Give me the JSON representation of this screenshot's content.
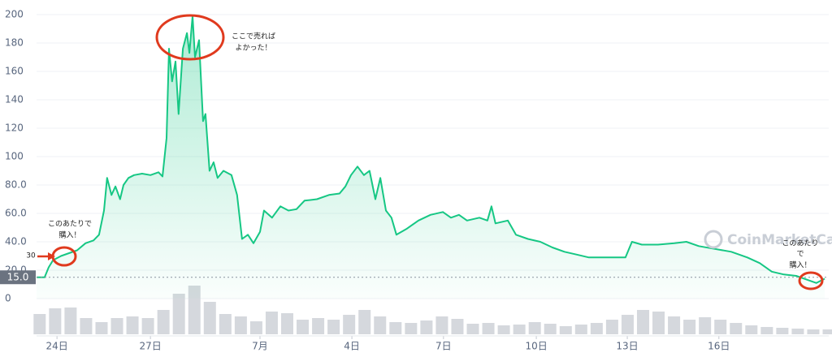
{
  "chart_data": {
    "type": "line",
    "x": [
      23.4,
      23.66,
      23.79,
      23.93,
      24.19,
      24.45,
      24.71,
      24.98,
      25.24,
      25.42,
      25.58,
      25.68,
      25.82,
      25.95,
      26.1,
      26.21,
      26.37,
      26.55,
      26.81,
      27.08,
      27.34,
      27.47,
      27.6,
      27.68,
      27.78,
      27.89,
      27.99,
      28.13,
      28.26,
      28.34,
      28.44,
      28.52,
      28.65,
      28.78,
      28.86,
      28.99,
      29.12,
      29.25,
      29.44,
      29.7,
      29.88,
      30.04,
      30.23,
      30.41,
      30.62,
      30.75,
      31.01,
      31.28,
      31.54,
      31.8,
      32.06,
      32.46,
      32.85,
      33.19,
      33.38,
      33.56,
      33.77,
      33.98,
      34.16,
      34.35,
      34.51,
      34.69,
      34.87,
      35.03,
      35.35,
      35.74,
      36.13,
      36.53,
      36.79,
      37.05,
      37.31,
      37.71,
      37.97,
      38.1,
      38.23,
      38.63,
      38.89,
      39.28,
      39.68,
      40.07,
      40.46,
      40.86,
      41.25,
      41.65,
      42.04,
      42.43,
      42.64,
      42.96,
      43.48,
      44.01,
      44.4,
      44.8,
      45.32,
      45.85,
      46.37,
      46.77,
      47.16,
      47.55,
      47.95,
      48.34,
      48.6,
      48.87
    ],
    "series": [
      {
        "color": "#16c784",
        "values": [
          15,
          15,
          22,
          27,
          30,
          32,
          34,
          39,
          41,
          45,
          62,
          85,
          73,
          79,
          70,
          80,
          85,
          87,
          88,
          87,
          89,
          86,
          113,
          176,
          153,
          167,
          130,
          176,
          187,
          173,
          199,
          170,
          182,
          125,
          130,
          90,
          96,
          85,
          90,
          87,
          73,
          42,
          45,
          39,
          47,
          62,
          57,
          65,
          62,
          63,
          69,
          70,
          73,
          74,
          79,
          87,
          93,
          87,
          90,
          70,
          85,
          62,
          57,
          45,
          49,
          55,
          59,
          61,
          57,
          59,
          55,
          57,
          55,
          65,
          53,
          55,
          45,
          42,
          40,
          36,
          33,
          31,
          29,
          29,
          29,
          29,
          40,
          38,
          38,
          39,
          40,
          37,
          35,
          33,
          29,
          25,
          19,
          17,
          16,
          13,
          11,
          14
        ]
      }
    ],
    "volume": {
      "color": "#d5d8dd",
      "x": [
        23.5,
        24,
        24.5,
        25,
        25.5,
        26,
        26.5,
        27,
        27.5,
        28,
        28.5,
        29,
        29.5,
        30,
        30.5,
        31,
        31.5,
        32,
        32.5,
        33,
        33.5,
        34,
        34.5,
        35,
        35.5,
        36,
        36.5,
        37,
        37.5,
        38,
        38.5,
        39,
        39.5,
        40,
        40.5,
        41,
        41.5,
        42,
        42.5,
        43,
        43.5,
        44,
        44.5,
        45,
        45.5,
        46,
        46.5,
        47,
        47.5,
        48,
        48.5,
        49
      ],
      "values": [
        25,
        32,
        33,
        20,
        15,
        20,
        22,
        20,
        30,
        50,
        60,
        40,
        25,
        22,
        16,
        28,
        26,
        18,
        20,
        18,
        24,
        30,
        22,
        15,
        14,
        17,
        22,
        19,
        13,
        14,
        11,
        12,
        15,
        13,
        10,
        12,
        14,
        18,
        24,
        30,
        28,
        22,
        18,
        21,
        18,
        14,
        11,
        9,
        8,
        7,
        6,
        6
      ]
    },
    "xlim": [
      23.4,
      49.0
    ],
    "xticks": [
      {
        "value": 24.06,
        "label": "24日"
      },
      {
        "value": 27.08,
        "label": "27日"
      },
      {
        "value": 30.62,
        "label": "7月"
      },
      {
        "value": 33.59,
        "label": "4日"
      },
      {
        "value": 36.55,
        "label": "7日"
      },
      {
        "value": 39.55,
        "label": "10日"
      },
      {
        "value": 42.49,
        "label": "13日"
      },
      {
        "value": 45.45,
        "label": "16日"
      }
    ],
    "ylim": [
      0,
      205
    ],
    "yticks": [
      0,
      {
        "value": 20,
        "label": "20.0"
      },
      {
        "value": 40,
        "label": "40.0"
      },
      {
        "value": 60,
        "label": "60.0"
      },
      {
        "value": 80,
        "label": "80.0"
      },
      100,
      120,
      140,
      160,
      180,
      200
    ],
    "grid": true,
    "current_price": {
      "value": 15,
      "label": "15.0"
    },
    "watermark": "CoinMarketCap",
    "annotations": [
      {
        "lines": [
          "このあたりで",
          "購入！"
        ]
      },
      {
        "lines": [
          "ここで売れば",
          "よかった！"
        ]
      },
      {
        "lines": [
          "このあたり",
          "で",
          "購入！"
        ]
      },
      {
        "lines": [
          "30"
        ]
      }
    ]
  }
}
